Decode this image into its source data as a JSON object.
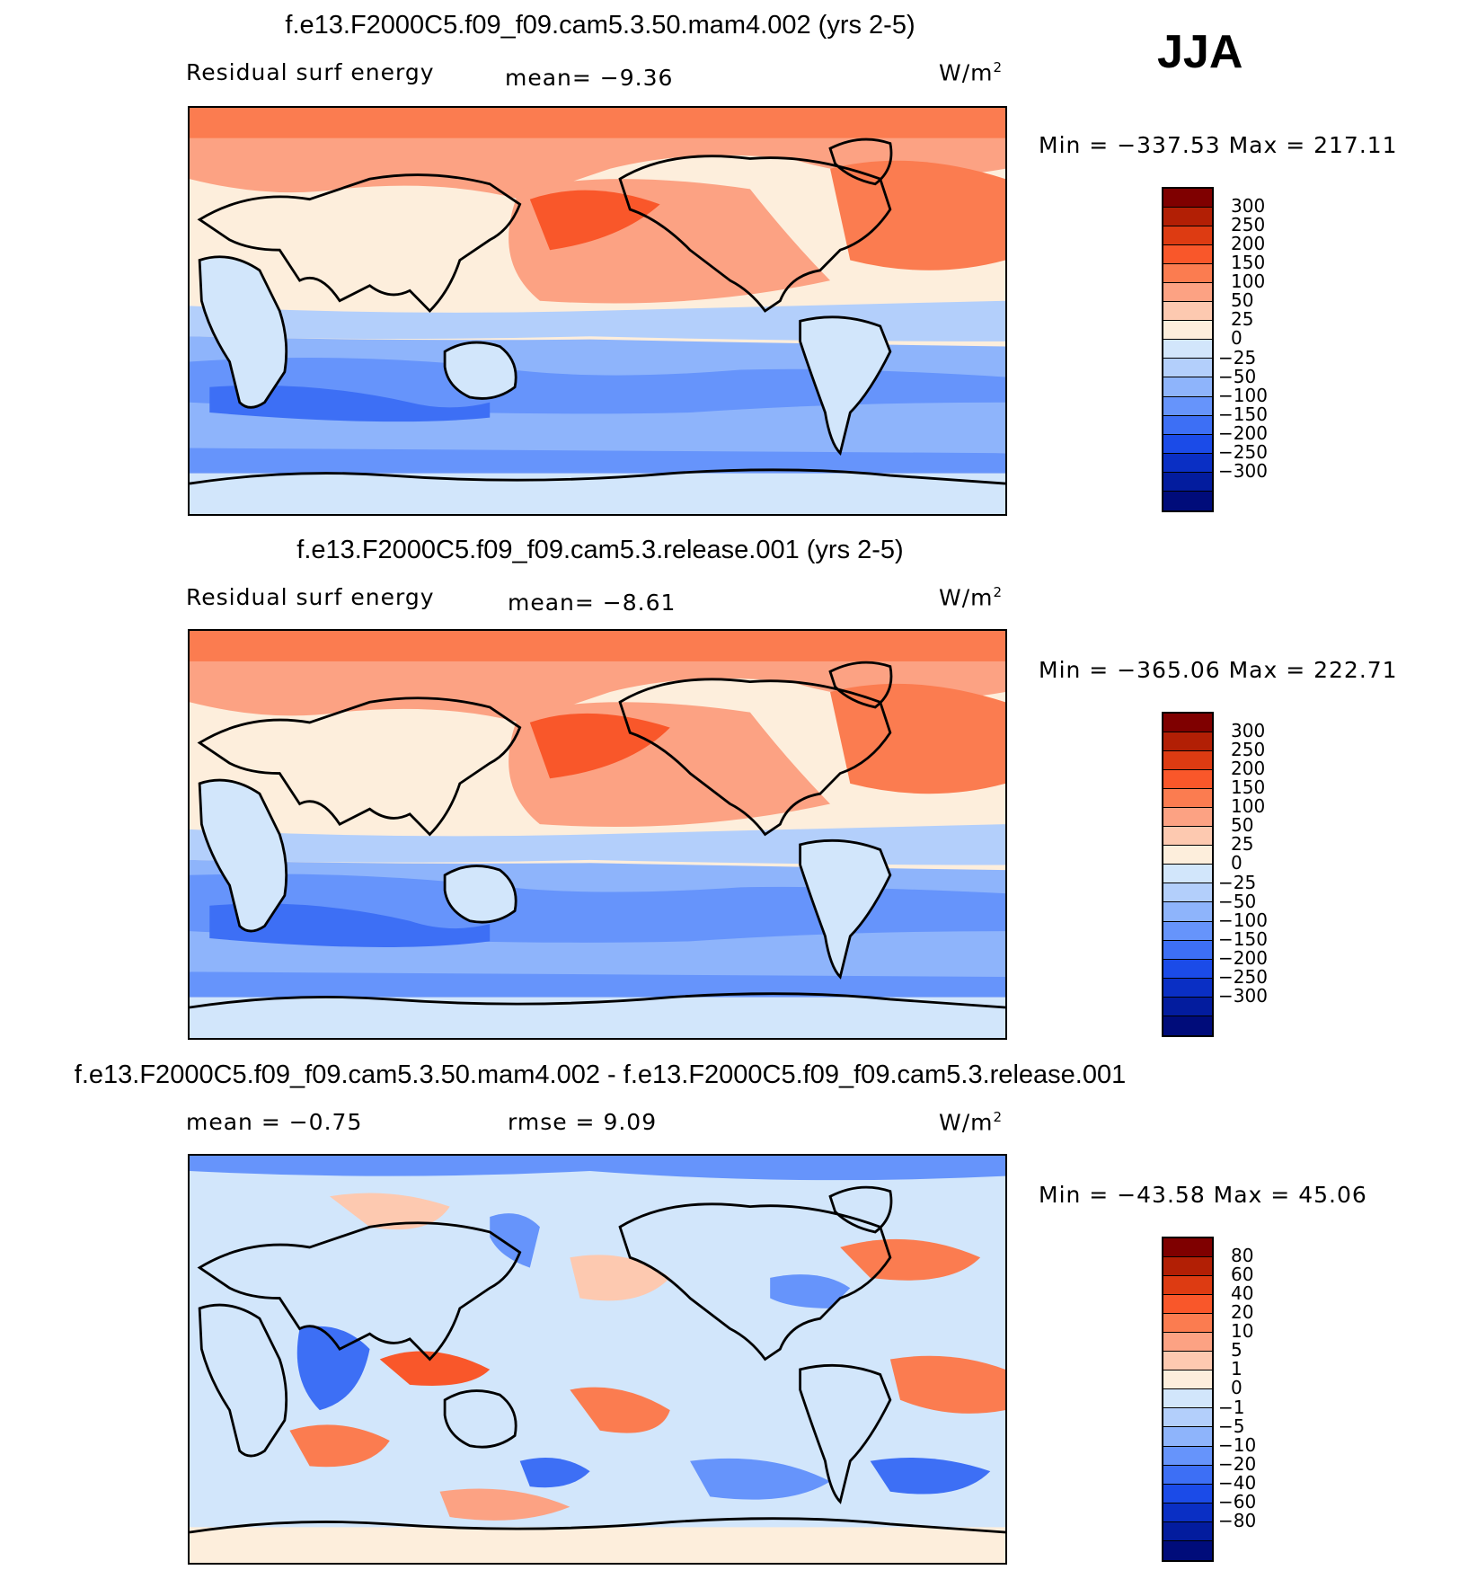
{
  "season": "JJA",
  "units": "W/m",
  "units_exp": "2",
  "panels": [
    {
      "title": "f.e13.F2000C5.f09_f09.cam5.3.50.mam4.002 (yrs 2-5)",
      "label": "Residual surf energy",
      "mean_text": "mean=   −9.36",
      "minmax": "Min = −337.53 Max = 217.11"
    },
    {
      "title": "f.e13.F2000C5.f09_f09.cam5.3.release.001 (yrs 2-5)",
      "label": "Residual surf energy",
      "mean_text": "mean=   −8.61",
      "minmax": "Min = −365.06 Max = 222.71"
    },
    {
      "title": "f.e13.F2000C5.f09_f09.cam5.3.50.mam4.002 - f.e13.F2000C5.f09_f09.cam5.3.release.001",
      "label": "mean =   −0.75",
      "mean_text": "rmse =     9.09",
      "minmax": "Min = −43.58 Max =   45.06"
    }
  ],
  "colorbar": {
    "colors": [
      "#7f0000",
      "#b21f05",
      "#dd3b12",
      "#f9572a",
      "#fb7c50",
      "#fca283",
      "#fdc9b0",
      "#fdeedc",
      "#d2e6fb",
      "#b3cffb",
      "#8eb4fb",
      "#6694fb",
      "#3d6ff5",
      "#1b4be8",
      "#0a2fc4",
      "#031c9e",
      "#000c7a"
    ],
    "labels_main": [
      "300",
      "250",
      "200",
      "150",
      "100",
      "50",
      "25",
      "0",
      "−25",
      "−50",
      "−100",
      "−150",
      "−200",
      "−250",
      "−300"
    ],
    "labels_diff": [
      "80",
      "60",
      "40",
      "20",
      "10",
      "5",
      "1",
      "0",
      "−1",
      "−5",
      "−10",
      "−20",
      "−40",
      "−60",
      "−80"
    ]
  }
}
